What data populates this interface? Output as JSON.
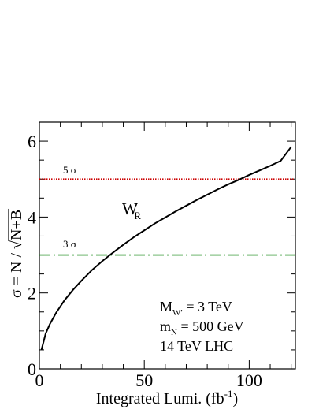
{
  "chart_data": {
    "type": "line",
    "title": "",
    "xlabel": "Integrated Lumi.",
    "xlabel_unit_prefix": "(fb",
    "xlabel_unit_exp": "-1",
    "xlabel_unit_suffix": ")",
    "ylabel": "σ = N / √N+B",
    "ylabel_parts": {
      "prefix": "σ = N / ",
      "radicand": "N+B"
    },
    "xlim": [
      0,
      122
    ],
    "ylim": [
      0,
      6.5
    ],
    "x_ticks": [
      0,
      50,
      100
    ],
    "x_tick_labels": [
      "0",
      "50",
      "100"
    ],
    "y_ticks": [
      0,
      2,
      4,
      6
    ],
    "y_tick_labels": [
      "0",
      "2",
      "4",
      "6"
    ],
    "grid": false,
    "series": [
      {
        "name": "W′R",
        "label_parts": {
          "base": "W",
          "prime": "′",
          "sub": "R"
        },
        "color": "#000000",
        "style": "solid",
        "x": [
          1,
          3,
          5,
          8,
          12,
          16,
          20,
          25,
          30,
          35,
          40,
          45,
          50,
          55,
          60,
          65,
          70,
          75,
          80,
          85,
          90,
          95,
          100,
          105,
          110,
          115,
          120
        ],
        "y": [
          0.5,
          0.93,
          1.18,
          1.48,
          1.81,
          2.08,
          2.32,
          2.6,
          2.84,
          3.06,
          3.27,
          3.47,
          3.65,
          3.83,
          3.99,
          4.15,
          4.3,
          4.45,
          4.59,
          4.73,
          4.86,
          4.98,
          5.11,
          5.23,
          5.35,
          5.48,
          5.85
        ]
      }
    ],
    "reference_lines": [
      {
        "label": "5 σ",
        "y": 5,
        "color": "#cc0000",
        "style": "dotted"
      },
      {
        "label": "3 σ",
        "y": 3,
        "color": "#1a8a1a",
        "style": "dashdot"
      }
    ],
    "annotations": [
      {
        "parts": {
          "base": "M",
          "sub": "W′",
          "rest": " = 3 TeV"
        }
      },
      {
        "parts": {
          "base": "m",
          "sub": "N",
          "rest": " = 500 GeV"
        }
      },
      {
        "text": "14 TeV LHC"
      }
    ]
  }
}
